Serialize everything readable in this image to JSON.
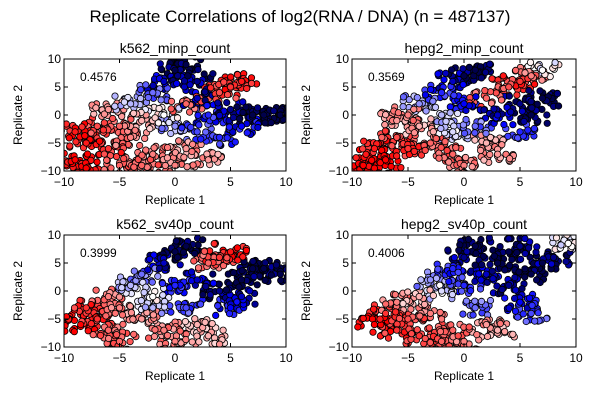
{
  "chart_data": {
    "type": "scatter",
    "title": "Replicate Correlations of log2(RNA / DNA) (n = 487137)",
    "panels": [
      {
        "title": "k562_minp_count",
        "correlation": "0.4576",
        "xlabel": "Replicate 1",
        "ylabel": "Replicate 2",
        "xlim": [
          -10,
          10
        ],
        "ylim": [
          -10,
          10
        ],
        "xticks": [
          "-10",
          "-5",
          "0",
          "5",
          "10"
        ],
        "yticks": [
          "-10",
          "-5",
          "0",
          "5",
          "10"
        ],
        "points": [
          [
            -9,
            -8,
            -1
          ],
          [
            -8,
            -5,
            -0.9
          ],
          [
            -7,
            -2,
            -0.7
          ],
          [
            -6,
            -6,
            -0.8
          ],
          [
            -5,
            -9,
            -0.6
          ],
          [
            -4,
            -4,
            -0.5
          ],
          [
            -6,
            1,
            -0.4
          ],
          [
            -4,
            2,
            0.2
          ],
          [
            -3,
            -1,
            -0.3
          ],
          [
            -2,
            4,
            0.4
          ],
          [
            -1,
            6,
            0.8
          ],
          [
            0,
            8,
            1
          ],
          [
            1,
            9,
            1
          ],
          [
            2,
            6,
            0.9
          ],
          [
            1,
            2,
            -0.6
          ],
          [
            0,
            -2,
            0.3
          ],
          [
            -2,
            -7,
            -0.5
          ],
          [
            1,
            -6,
            -0.4
          ],
          [
            2,
            -3,
            0.5
          ],
          [
            3,
            0,
            0.6
          ],
          [
            4,
            4,
            -0.7
          ],
          [
            5,
            5,
            -0.8
          ],
          [
            6,
            6,
            -0.9
          ],
          [
            5,
            1,
            0.9
          ],
          [
            6,
            -2,
            0.7
          ],
          [
            7,
            0,
            1
          ],
          [
            8,
            0,
            1
          ],
          [
            9.5,
            0,
            1
          ],
          [
            4,
            -4,
            0.6
          ],
          [
            3,
            -8,
            -0.4
          ],
          [
            -8,
            -9.5,
            -1
          ],
          [
            -3,
            -9,
            -0.6
          ],
          [
            0,
            -9,
            -0.5
          ],
          [
            -1,
            0,
            0
          ],
          [
            2,
            3,
            0.8
          ],
          [
            -9,
            -3,
            -0.9
          ],
          [
            -5,
            -2,
            -0.6
          ]
        ]
      },
      {
        "title": "hepg2_minp_count",
        "correlation": "0.3569",
        "xlabel": "Replicate 1",
        "ylabel": "Replicate 2",
        "xlim": [
          -10,
          10
        ],
        "ylim": [
          -10,
          10
        ],
        "xticks": [
          "-10",
          "-5",
          "0",
          "5",
          "10"
        ],
        "yticks": [
          "-10",
          "-5",
          "0",
          "5",
          "10"
        ],
        "points": [
          [
            -9,
            -9,
            -1
          ],
          [
            -8,
            -6,
            -0.9
          ],
          [
            -7,
            -8,
            -1
          ],
          [
            -6,
            -4,
            -0.7
          ],
          [
            -6,
            -1,
            -0.4
          ],
          [
            -5,
            -6,
            -0.8
          ],
          [
            -4,
            -2,
            -0.3
          ],
          [
            -4,
            2,
            0.3
          ],
          [
            -3,
            -5,
            -0.6
          ],
          [
            -2,
            0,
            0.2
          ],
          [
            -2,
            4,
            0.6
          ],
          [
            -1,
            6,
            0.8
          ],
          [
            0,
            7,
            1
          ],
          [
            1,
            8,
            1
          ],
          [
            0,
            2,
            0.7
          ],
          [
            1,
            -2,
            0.4
          ],
          [
            -1,
            -7,
            -0.6
          ],
          [
            2,
            -5,
            -0.3
          ],
          [
            2,
            3,
            -0.6
          ],
          [
            3,
            0,
            0.8
          ],
          [
            4,
            5,
            -0.7
          ],
          [
            5,
            6,
            -0.8
          ],
          [
            6,
            7,
            -0.5
          ],
          [
            5,
            2,
            0.9
          ],
          [
            5,
            -3,
            0.6
          ],
          [
            6,
            0,
            1
          ],
          [
            7,
            3,
            1
          ],
          [
            7,
            8,
            0
          ],
          [
            3,
            -7,
            -0.4
          ],
          [
            -8,
            -9.5,
            -1
          ],
          [
            0,
            -9,
            -0.5
          ],
          [
            -1,
            -3,
            0.1
          ],
          [
            -5,
            0,
            -0.5
          ]
        ]
      },
      {
        "title": "k562_sv40p_count",
        "correlation": "0.3999",
        "xlabel": "Replicate 1",
        "ylabel": "Replicate 2",
        "xlim": [
          -10,
          10
        ],
        "ylim": [
          -10,
          10
        ],
        "xticks": [
          "-10",
          "-5",
          "0",
          "5",
          "10"
        ],
        "yticks": [
          "-10",
          "-5",
          "0",
          "5",
          "10"
        ],
        "points": [
          [
            -8.5,
            -6,
            -1
          ],
          [
            -8,
            -3,
            -0.8
          ],
          [
            -7,
            -5,
            -0.8
          ],
          [
            -6,
            -1,
            -0.5
          ],
          [
            -6,
            -7,
            -0.6
          ],
          [
            -5,
            -3,
            -0.5
          ],
          [
            -4,
            1,
            0.2
          ],
          [
            -3,
            -5,
            -0.4
          ],
          [
            -3,
            3,
            0.4
          ],
          [
            -2,
            -1,
            0
          ],
          [
            -1,
            5,
            0.8
          ],
          [
            0,
            7,
            1
          ],
          [
            1,
            8,
            1
          ],
          [
            0,
            1,
            0.6
          ],
          [
            1,
            -3,
            0.5
          ],
          [
            -1,
            -7,
            -0.5
          ],
          [
            2,
            -6,
            -0.3
          ],
          [
            2,
            2,
            0.8
          ],
          [
            3,
            5,
            -0.6
          ],
          [
            4,
            6,
            -0.8
          ],
          [
            5,
            7,
            -0.9
          ],
          [
            4,
            0,
            0.9
          ],
          [
            5,
            -3,
            0.7
          ],
          [
            6,
            2,
            1
          ],
          [
            7,
            4,
            1
          ],
          [
            8,
            4,
            1
          ],
          [
            9.5,
            3,
            1
          ],
          [
            3,
            -8,
            -0.3
          ],
          [
            -5,
            -9,
            -0.6
          ],
          [
            0,
            -9,
            -0.5
          ],
          [
            -2,
            -3,
            0.2
          ],
          [
            6,
            -1,
            0.8
          ]
        ]
      },
      {
        "title": "hepg2_sv40p_count",
        "correlation": "0.4006",
        "xlabel": "Replicate 1",
        "ylabel": "Replicate 2",
        "xlim": [
          -10,
          10
        ],
        "ylim": [
          -10,
          10
        ],
        "xticks": [
          "-10",
          "-5",
          "0",
          "5",
          "10"
        ],
        "yticks": [
          "-10",
          "-5",
          "0",
          "5",
          "10"
        ],
        "points": [
          [
            -8,
            -6,
            -1
          ],
          [
            -7,
            -4,
            -0.8
          ],
          [
            -6,
            -7,
            -0.8
          ],
          [
            -6,
            -2,
            -0.5
          ],
          [
            -5,
            -5,
            -0.7
          ],
          [
            -4,
            -1,
            -0.3
          ],
          [
            -4,
            -8,
            -0.8
          ],
          [
            -3,
            2,
            0.3
          ],
          [
            -3,
            -4,
            -0.5
          ],
          [
            -2,
            0,
            0.1
          ],
          [
            -1,
            4,
            0.6
          ],
          [
            0,
            6,
            0.9
          ],
          [
            1,
            8,
            1
          ],
          [
            0,
            1,
            0.6
          ],
          [
            1,
            -3,
            0.4
          ],
          [
            -1,
            -7,
            -0.6
          ],
          [
            2,
            -6,
            -0.4
          ],
          [
            2,
            3,
            0.8
          ],
          [
            3,
            5,
            1
          ],
          [
            4,
            7,
            1
          ],
          [
            5,
            8,
            0.9
          ],
          [
            4,
            1,
            0.9
          ],
          [
            5,
            -2,
            0.7
          ],
          [
            6,
            3,
            1
          ],
          [
            7,
            5,
            1
          ],
          [
            8,
            6,
            0.9
          ],
          [
            9.3,
            8.5,
            0
          ],
          [
            3,
            -7,
            -0.3
          ],
          [
            -2,
            -9,
            -0.6
          ],
          [
            0,
            -9,
            -0.5
          ],
          [
            6,
            -4,
            0.5
          ]
        ]
      }
    ],
    "colormap": [
      "#ff0000",
      "#ffffff",
      "#0000ff",
      "#00004c"
    ],
    "grid": false
  }
}
